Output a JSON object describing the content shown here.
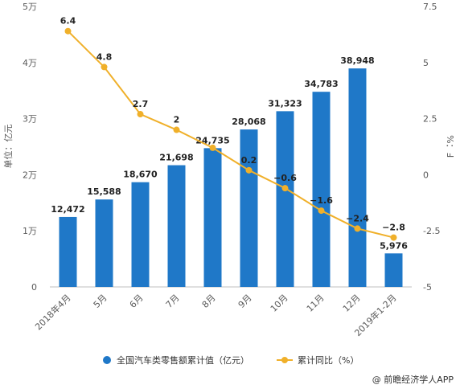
{
  "chart_data": {
    "type": "bar",
    "categories": [
      "2018年4月",
      "5月",
      "6月",
      "7月",
      "8月",
      "9月",
      "10月",
      "11月",
      "12月",
      "2019年1-2月"
    ],
    "series": [
      {
        "name": "全国汽车类零售额累计值（亿元）",
        "type": "bar",
        "axis": "left",
        "values": [
          12472,
          15588,
          18670,
          21698,
          24735,
          28068,
          31323,
          34783,
          38948,
          5976
        ],
        "value_labels": [
          "12,472",
          "15,588",
          "18,670",
          "21,698",
          "24,735",
          "28,068",
          "31,323",
          "34,783",
          "38,948",
          "5,976"
        ],
        "color": "#1f78c8"
      },
      {
        "name": "累计同比（%）",
        "type": "line",
        "axis": "right",
        "values": [
          6.4,
          4.8,
          2.7,
          2.0,
          1.2,
          0.2,
          -0.6,
          -1.6,
          -2.4,
          -2.8
        ],
        "value_labels": [
          "6.4",
          "4.8",
          "2.7",
          "2",
          "",
          "0.2",
          "−0.6",
          "−1.6",
          "−2.4",
          "−2.8"
        ],
        "color": "#f0b02a"
      }
    ],
    "y_left": {
      "label": "单位：亿元",
      "ylim": [
        0,
        50000
      ],
      "ticks": [
        0,
        10000,
        20000,
        30000,
        40000,
        50000
      ],
      "tick_labels": [
        "0",
        "1万",
        "2万",
        "3万",
        "4万",
        "5万"
      ]
    },
    "y_right": {
      "label": "%：Ⅎ",
      "ylim": [
        -5,
        7.5
      ],
      "ticks": [
        -5,
        -2.5,
        0,
        2.5,
        5,
        7.5
      ],
      "tick_labels": [
        "-5",
        "-2.5",
        "0",
        "2.5",
        "5",
        "7.5"
      ]
    },
    "grid": false,
    "legend_position": "bottom"
  },
  "credit": "@ 前瞻经济学人APP",
  "colors": {
    "bar": "#1f78c8",
    "line": "#f0b02a"
  }
}
